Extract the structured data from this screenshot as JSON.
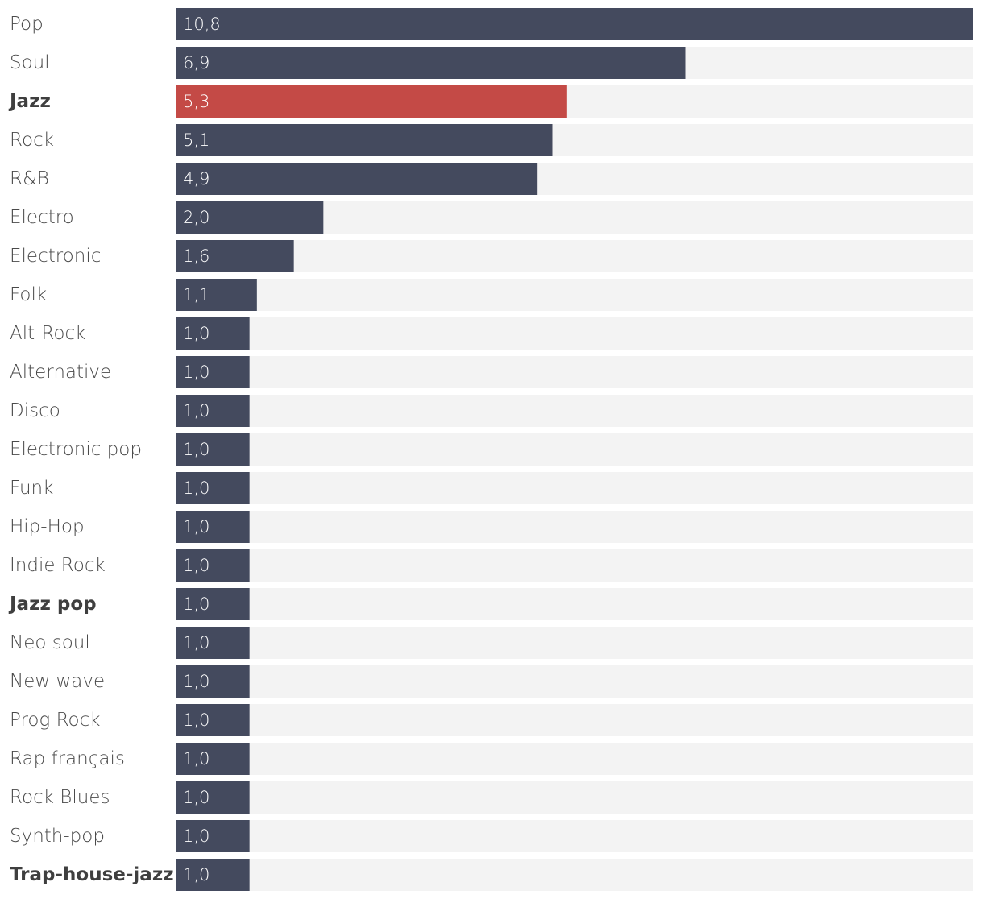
{
  "chart_data": {
    "type": "bar",
    "orientation": "horizontal",
    "categories": [
      "Pop",
      "Soul",
      "Jazz",
      "Rock",
      "R&B",
      "Electro",
      "Electronic",
      "Folk",
      "Alt-Rock",
      "Alternative",
      "Disco",
      "Electronic pop",
      "Funk",
      "Hip-Hop",
      "Indie Rock",
      "Jazz pop",
      "Neo soul",
      "New wave",
      "Prog Rock",
      "Rap français",
      "Rock Blues",
      "Synth-pop",
      "Trap-house-jazz"
    ],
    "values": [
      10.8,
      6.9,
      5.3,
      5.1,
      4.9,
      2.0,
      1.6,
      1.1,
      1.0,
      1.0,
      1.0,
      1.0,
      1.0,
      1.0,
      1.0,
      1.0,
      1.0,
      1.0,
      1.0,
      1.0,
      1.0,
      1.0,
      1.0
    ],
    "value_labels": [
      "10,8",
      "6,9",
      "5,3",
      "5,1",
      "4,9",
      "2,0",
      "1,6",
      "1,1",
      "1,0",
      "1,0",
      "1,0",
      "1,0",
      "1,0",
      "1,0",
      "1,0",
      "1,0",
      "1,0",
      "1,0",
      "1,0",
      "1,0",
      "1,0",
      "1,0",
      "1,0"
    ],
    "emphasized": [
      "Jazz",
      "Jazz pop",
      "Trap-house-jazz"
    ],
    "highlighted": "Jazz",
    "xlim": [
      0,
      10.8
    ],
    "title": "",
    "xlabel": "",
    "ylabel": "",
    "colors": {
      "bar": "#444a5e",
      "highlight": "#c44a46",
      "track": "#f3f3f3"
    }
  }
}
